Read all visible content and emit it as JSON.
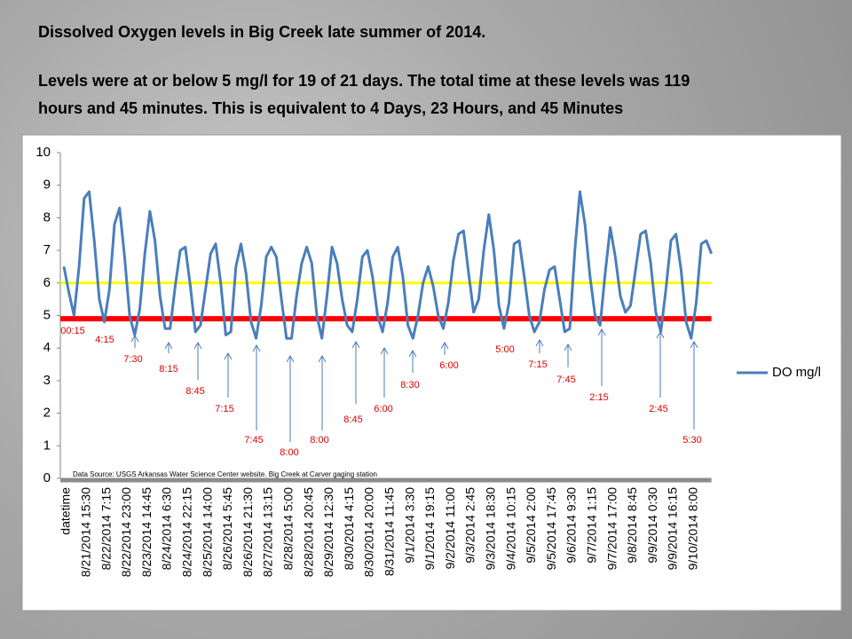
{
  "header": {
    "title": "Dissolved Oxygen levels in Big Creek late summer of 2014.",
    "summary_lines": [
      "Levels were at or below 5 mg/l  for 19 of 21 days.  The total time at these levels was 119",
      "hours and 45 minutes.  This is equivalent to 4 Days, 23 Hours, and 45 Minutes"
    ]
  },
  "chart_data": {
    "type": "line",
    "categories": [
      "datetime",
      null,
      null,
      null,
      "8/21/2014 15:30",
      null,
      null,
      null,
      "8/22/2014 7:15",
      null,
      null,
      null,
      "8/22/2014 23:00",
      null,
      null,
      null,
      "8/23/2014 14:45",
      null,
      null,
      null,
      "8/24/2014 6:30",
      null,
      null,
      null,
      "8/24/2014 22:15",
      null,
      null,
      null,
      "8/25/2014 14:00",
      null,
      null,
      null,
      "8/26/2014 5:45",
      null,
      null,
      null,
      "8/26/2014 21:30",
      null,
      null,
      null,
      "8/27/2014 13:15",
      null,
      null,
      null,
      "8/28/2014 5:00",
      null,
      null,
      null,
      "8/28/2014 20:45",
      null,
      null,
      null,
      "8/29/2014 12:30",
      null,
      null,
      null,
      "8/30/2014 4:15",
      null,
      null,
      null,
      "8/30/2014 20:00",
      null,
      null,
      null,
      "8/31/2014 11:45",
      null,
      null,
      null,
      "9/1/2014 3:30",
      null,
      null,
      null,
      "9/1/2014 19:15",
      null,
      null,
      null,
      "9/2/2014 11:00",
      null,
      null,
      null,
      "9/3/2014 2:45",
      null,
      null,
      null,
      "9/3/2014 18:30",
      null,
      null,
      null,
      "9/4/2014 10:15",
      null,
      null,
      null,
      "9/5/2014 2:00",
      null,
      null,
      null,
      "9/5/2014 17:45",
      null,
      null,
      null,
      "9/6/2014 9:30",
      null,
      null,
      null,
      "9/7/2014 1:15",
      null,
      null,
      null,
      "9/7/2014 17:00",
      null,
      null,
      null,
      "9/8/2014 8:45",
      null,
      null,
      null,
      "9/9/2014 0:30",
      null,
      null,
      null,
      "9/9/2014 16:15",
      null,
      null,
      null,
      "9/10/2014 8:00",
      null,
      null,
      null,
      null
    ],
    "series": [
      {
        "name": "DO mg/l",
        "color": "#4a7ebb",
        "values": [
          6.5,
          5.7,
          5.0,
          6.5,
          8.6,
          8.8,
          7.3,
          5.5,
          4.8,
          5.8,
          7.8,
          8.3,
          6.8,
          5.0,
          4.4,
          5.2,
          6.9,
          8.2,
          7.3,
          5.6,
          4.6,
          4.6,
          5.9,
          7.0,
          7.1,
          5.9,
          4.5,
          4.7,
          5.8,
          6.9,
          7.2,
          6.0,
          4.4,
          4.5,
          6.5,
          7.2,
          6.3,
          4.8,
          4.3,
          5.3,
          6.8,
          7.1,
          6.8,
          5.5,
          4.3,
          4.3,
          5.6,
          6.6,
          7.1,
          6.6,
          5.0,
          4.3,
          5.6,
          7.1,
          6.6,
          5.5,
          4.7,
          4.5,
          5.5,
          6.8,
          7.0,
          6.2,
          5.0,
          4.5,
          5.4,
          6.8,
          7.1,
          6.2,
          4.7,
          4.3,
          5.0,
          6.0,
          6.5,
          5.9,
          5.0,
          4.6,
          5.4,
          6.7,
          7.5,
          7.6,
          6.3,
          5.1,
          5.5,
          7.0,
          8.1,
          7.0,
          5.3,
          4.6,
          5.4,
          7.2,
          7.3,
          6.2,
          5.0,
          4.5,
          4.8,
          5.8,
          6.4,
          6.5,
          5.5,
          4.5,
          4.6,
          7.0,
          8.8,
          7.8,
          6.2,
          5.0,
          4.7,
          6.3,
          7.7,
          6.8,
          5.6,
          5.1,
          5.3,
          6.4,
          7.5,
          7.6,
          6.6,
          5.1,
          4.5,
          5.8,
          7.3,
          7.5,
          6.4,
          4.8,
          4.3,
          5.4,
          7.2,
          7.3,
          6.9
        ]
      }
    ],
    "reference_lines": [
      {
        "value": 6,
        "color": "#ffff00"
      },
      {
        "value": 4.9,
        "color": "#ff0000"
      }
    ],
    "ylim": [
      0,
      10
    ],
    "yticks": [
      0,
      1,
      2,
      3,
      4,
      5,
      6,
      7,
      8,
      9,
      10
    ],
    "annotations": [
      "00:15",
      "4:15",
      "7:30",
      "8:15",
      "8:45",
      "7:15",
      "7:45",
      "8:00",
      "8:00",
      "8:45",
      "6:00",
      "8:30",
      "6:00",
      "5:00",
      "7:15",
      "7:45",
      "2:15",
      "2:45",
      "5:30"
    ],
    "source_note": "Data Source:  USGS Arkansas Water Science Center website.  Big Creek at Carver gaging station",
    "legend": "right"
  }
}
